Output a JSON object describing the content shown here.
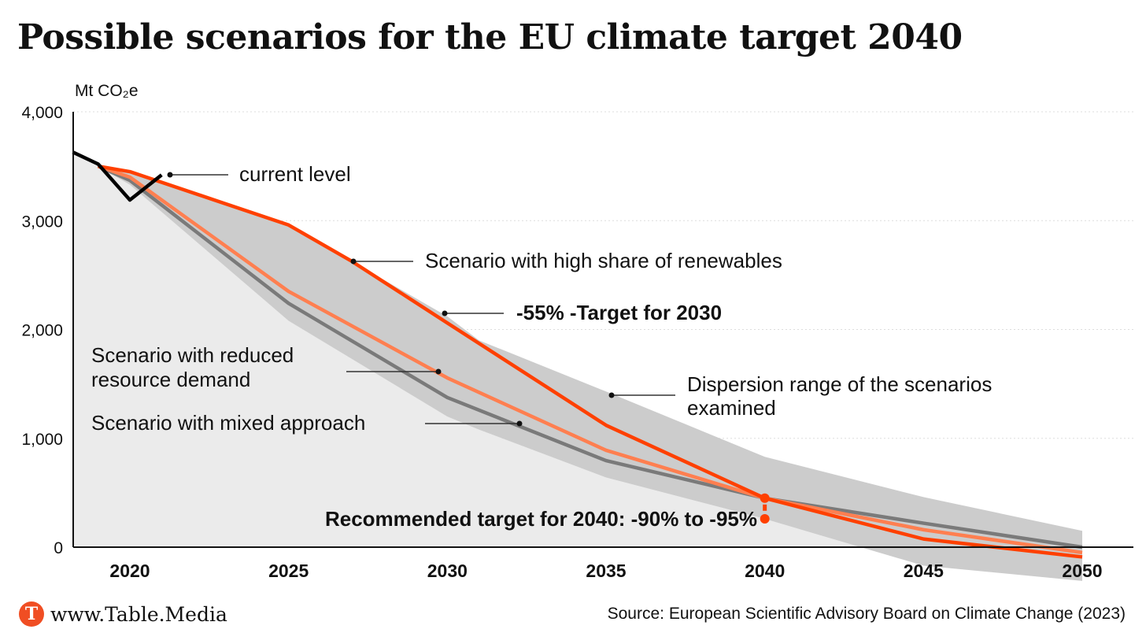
{
  "chart_data": {
    "type": "line",
    "title": "Possible scenarios for the EU climate target 2040",
    "ylabel": "Mt CO₂e",
    "xlabel": "",
    "ylim": [
      0,
      4000
    ],
    "xlim": [
      2018.2,
      2050.5
    ],
    "yticks": [
      0,
      1000,
      2000,
      3000,
      4000
    ],
    "ytick_labels": [
      "0",
      "1,000",
      "2,000",
      "3,000",
      "4,000"
    ],
    "xticks": [
      2020,
      2025,
      2030,
      2035,
      2040,
      2045,
      2050
    ],
    "xtick_labels": [
      "2020",
      "2025",
      "2030",
      "2035",
      "2040",
      "2045",
      "2050"
    ],
    "grid": "horizontal dotted",
    "colors": {
      "high_renewables": "#ff4000",
      "reduced_demand": "#ff7f50",
      "mixed": "#7a7a7a",
      "historic": "#000000",
      "range": "#cccccc",
      "background_area": "#ebebeb"
    },
    "series": [
      {
        "key": "historic",
        "x": [
          2018.2,
          2019,
          2020,
          2021
        ],
        "y": [
          3630,
          3520,
          3190,
          3420
        ]
      },
      {
        "key": "high_renewables",
        "x": [
          2019,
          2020,
          2025,
          2027,
          2030,
          2035,
          2040,
          2045,
          2050
        ],
        "y": [
          3500,
          3450,
          2960,
          2625,
          2060,
          1120,
          450,
          75,
          -90
        ]
      },
      {
        "key": "reduced_demand",
        "x": [
          2019,
          2020,
          2025,
          2030,
          2035,
          2040,
          2045,
          2050
        ],
        "y": [
          3500,
          3400,
          2350,
          1555,
          890,
          450,
          160,
          -50
        ]
      },
      {
        "key": "mixed",
        "x": [
          2019,
          2020,
          2025,
          2030,
          2035,
          2040,
          2045,
          2050
        ],
        "y": [
          3500,
          3370,
          2240,
          1375,
          795,
          450,
          220,
          0
        ]
      }
    ],
    "range": {
      "x": [
        2019,
        2020,
        2025,
        2030,
        2031,
        2035,
        2040,
        2045,
        2050
      ],
      "upper": [
        3500,
        3460,
        2960,
        2120,
        1900,
        1430,
        830,
        460,
        150
      ],
      "lower": [
        3500,
        3330,
        2080,
        1200,
        1080,
        640,
        260,
        -170,
        -310
      ]
    },
    "target_2040": {
      "x": 2040,
      "y_high": 450,
      "y_low": 260
    },
    "annotations": {
      "current": "current level",
      "renewables": "Scenario with high share of renewables",
      "target2030": "-55% -Target for 2030",
      "reduced1": "Scenario with reduced",
      "reduced2": "resource demand",
      "mixed": "Scenario with mixed approach",
      "range1": "Dispersion range of the scenarios",
      "range2": "examined",
      "target2040": "Recommended target for 2040: -90% to -95%"
    }
  },
  "footer": {
    "logo_letter": "T",
    "brand": "www.Table.Media",
    "source": "Source: European Scientific Advisory Board on Climate Change (2023)"
  }
}
